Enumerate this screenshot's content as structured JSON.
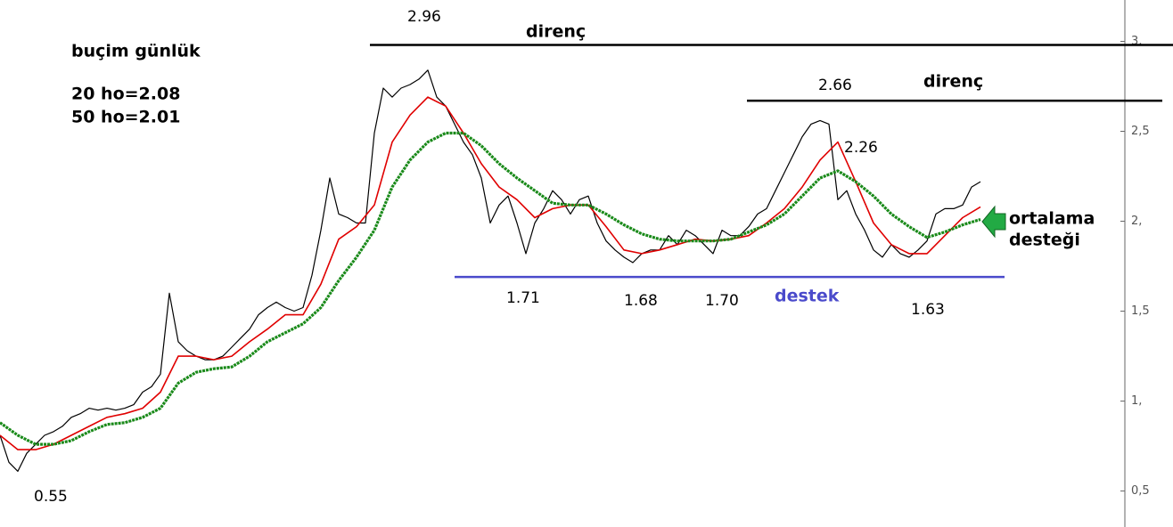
{
  "chart_data": {
    "type": "line",
    "notes": [
      "buçim günlük",
      "20 ho=2.08",
      "50 ho=2.01"
    ],
    "annotations": [
      "2.96",
      "direnç",
      "2.66",
      "direnç",
      "2.26",
      "1.71",
      "1.68",
      "1.70",
      "destek",
      "1.63",
      "0.55"
    ],
    "callout": [
      "ortalama",
      "desteği"
    ],
    "xlim": [
      0,
      131.6
    ],
    "ylim": [
      0.3,
      3.23
    ],
    "yticks": [
      {
        "value": 0.5,
        "label": "0,5"
      },
      {
        "value": 1,
        "label": "1,"
      },
      {
        "value": 1.5,
        "label": "1,5"
      },
      {
        "value": 2,
        "label": "2,"
      },
      {
        "value": 2.5,
        "label": "2,5"
      },
      {
        "value": 3,
        "label": "3,"
      }
    ],
    "hlines": [
      {
        "value": 2.98,
        "color": "#000000"
      },
      {
        "value": 2.67,
        "color": "#000000"
      },
      {
        "value": 1.69,
        "color": "#4a4acb"
      }
    ],
    "series": [
      {
        "color": "#000000",
        "x": [
          0,
          1,
          2,
          3,
          4,
          5,
          6,
          7,
          8,
          9,
          10,
          11,
          12,
          13,
          14,
          15,
          16,
          17,
          18,
          19,
          20,
          21,
          22,
          23,
          24,
          25,
          26,
          27,
          28,
          29,
          30,
          31,
          32,
          33,
          34,
          35,
          36,
          37,
          38,
          39,
          40,
          41,
          42,
          43,
          44,
          45,
          46,
          47,
          48,
          49,
          50,
          51,
          52,
          53,
          54,
          55,
          56,
          57,
          58,
          59,
          60,
          61,
          62,
          63,
          64,
          65,
          66,
          67,
          68,
          69,
          70,
          71,
          72,
          73,
          74,
          75,
          76,
          77,
          78,
          79,
          80,
          81,
          82,
          83,
          84,
          85,
          86,
          87,
          88,
          89,
          90,
          91,
          92,
          93,
          94,
          95,
          96,
          97,
          98,
          99,
          100,
          101,
          102,
          103,
          104,
          105,
          106,
          107,
          108,
          109,
          110
        ],
        "values": [
          0.81,
          0.66,
          0.61,
          0.71,
          0.76,
          0.81,
          0.83,
          0.86,
          0.91,
          0.93,
          0.96,
          0.95,
          0.96,
          0.95,
          0.96,
          0.98,
          1.05,
          1.08,
          1.15,
          1.6,
          1.33,
          1.28,
          1.25,
          1.23,
          1.23,
          1.25,
          1.3,
          1.35,
          1.4,
          1.48,
          1.52,
          1.55,
          1.52,
          1.5,
          1.52,
          1.7,
          1.95,
          2.24,
          2.04,
          2.02,
          1.99,
          1.99,
          2.49,
          2.74,
          2.69,
          2.74,
          2.76,
          2.79,
          2.84,
          2.69,
          2.64,
          2.54,
          2.44,
          2.37,
          2.24,
          1.99,
          2.09,
          2.14,
          1.99,
          1.82,
          1.99,
          2.07,
          2.17,
          2.12,
          2.04,
          2.12,
          2.14,
          1.99,
          1.89,
          1.84,
          1.8,
          1.77,
          1.82,
          1.84,
          1.84,
          1.92,
          1.87,
          1.95,
          1.92,
          1.87,
          1.82,
          1.95,
          1.92,
          1.92,
          1.97,
          2.04,
          2.07,
          2.17,
          2.27,
          2.37,
          2.47,
          2.54,
          2.56,
          2.54,
          2.12,
          2.17,
          2.04,
          1.95,
          1.84,
          1.8,
          1.87,
          1.82,
          1.8,
          1.84,
          1.89,
          2.04,
          2.07,
          2.07,
          2.09,
          2.19,
          2.22
        ]
      },
      {
        "color": "#e00000",
        "x": [
          0,
          2,
          4,
          6,
          8,
          10,
          12,
          14,
          16,
          18,
          20,
          22,
          24,
          26,
          28,
          30,
          32,
          34,
          36,
          38,
          40,
          42,
          44,
          46,
          48,
          50,
          52,
          54,
          56,
          58,
          60,
          62,
          64,
          66,
          68,
          70,
          72,
          74,
          76,
          78,
          80,
          82,
          84,
          86,
          88,
          90,
          92,
          94,
          96,
          98,
          100,
          102,
          104,
          106,
          108,
          110
        ],
        "values": [
          0.81,
          0.73,
          0.73,
          0.76,
          0.81,
          0.86,
          0.91,
          0.93,
          0.96,
          1.05,
          1.25,
          1.25,
          1.23,
          1.25,
          1.33,
          1.4,
          1.48,
          1.48,
          1.65,
          1.9,
          1.97,
          2.09,
          2.44,
          2.59,
          2.69,
          2.64,
          2.49,
          2.32,
          2.19,
          2.12,
          2.02,
          2.07,
          2.09,
          2.09,
          1.97,
          1.84,
          1.82,
          1.84,
          1.87,
          1.9,
          1.89,
          1.9,
          1.92,
          1.99,
          2.07,
          2.19,
          2.34,
          2.44,
          2.22,
          1.99,
          1.87,
          1.82,
          1.82,
          1.92,
          2.02,
          2.08
        ]
      },
      {
        "color": "#1a8a1a",
        "x": [
          0,
          2,
          4,
          6,
          8,
          10,
          12,
          14,
          16,
          18,
          20,
          22,
          24,
          26,
          28,
          30,
          32,
          34,
          36,
          38,
          40,
          42,
          44,
          46,
          48,
          50,
          52,
          54,
          56,
          58,
          60,
          62,
          64,
          66,
          68,
          70,
          72,
          74,
          76,
          78,
          80,
          82,
          84,
          86,
          88,
          90,
          92,
          94,
          96,
          98,
          100,
          102,
          104,
          106,
          108,
          110
        ],
        "values": [
          0.88,
          0.81,
          0.76,
          0.76,
          0.78,
          0.83,
          0.87,
          0.88,
          0.91,
          0.96,
          1.1,
          1.16,
          1.18,
          1.19,
          1.25,
          1.33,
          1.38,
          1.43,
          1.52,
          1.67,
          1.8,
          1.95,
          2.19,
          2.34,
          2.44,
          2.49,
          2.49,
          2.42,
          2.32,
          2.24,
          2.17,
          2.1,
          2.09,
          2.09,
          2.04,
          1.98,
          1.93,
          1.9,
          1.89,
          1.89,
          1.89,
          1.9,
          1.94,
          1.98,
          2.04,
          2.14,
          2.24,
          2.28,
          2.22,
          2.14,
          2.04,
          1.97,
          1.91,
          1.94,
          1.98,
          2.01
        ]
      }
    ]
  }
}
